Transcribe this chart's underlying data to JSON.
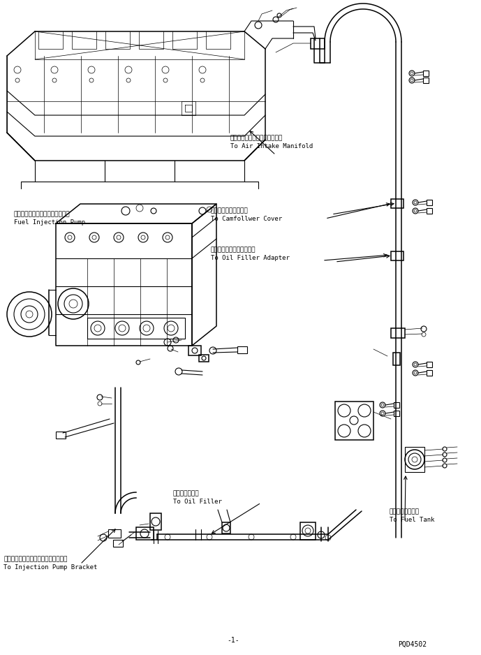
{
  "bg_color": "#ffffff",
  "line_color": "#000000",
  "fig_width": 6.89,
  "fig_height": 9.38,
  "dpi": 100,
  "part_id": "PQD4502",
  "labels": {
    "air_intake_jp": "エアーインテークマニホルドへ",
    "air_intake_en": "To Air Intake Manifold",
    "camfollower_jp": "カムフォロワカバーへ",
    "camfollower_en": "To Camfollwer Cover",
    "oil_filler_adapter_jp": "オイルフィルタアダプタへ",
    "oil_filler_adapter_en": "To Oil Filler Adapter",
    "fuel_injection_jp": "フェエルインジェクションポンプ",
    "fuel_injection_en": "Fuel Injection Pump",
    "oil_filler_jp": "オイルフィラへ",
    "oil_filler_en": "To Oil Filler",
    "fuel_tank_jp": "フェエルタンクへ",
    "fuel_tank_en": "To Fuel Tank",
    "injection_pump_bracket_jp": "インジェクションポンプブラケットへ",
    "injection_pump_bracket_en": "To Injection Pump Bracket"
  }
}
